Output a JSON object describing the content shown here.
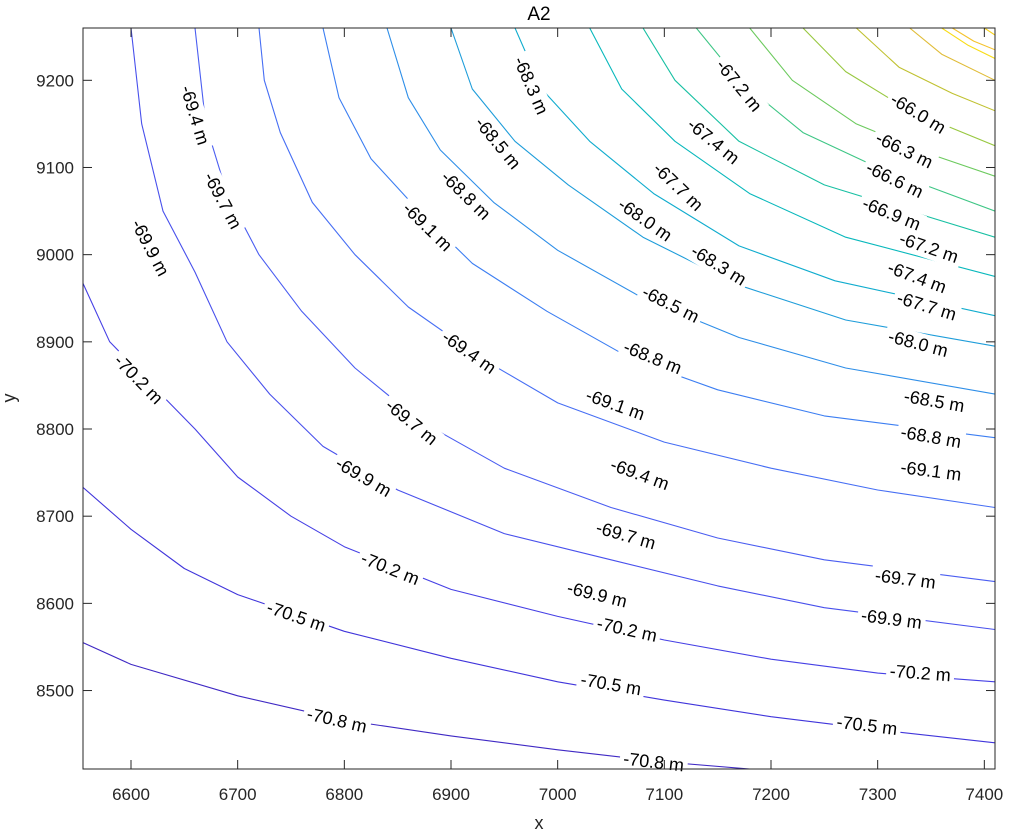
{
  "chart_data": {
    "type": "contour",
    "title": "A2",
    "xlabel": "x",
    "ylabel": "y",
    "xlim": [
      6555,
      7410
    ],
    "ylim": [
      8410,
      9260
    ],
    "xticks": [
      6600,
      6700,
      6800,
      6900,
      7000,
      7100,
      7200,
      7300,
      7400
    ],
    "yticks": [
      8500,
      8600,
      8700,
      8800,
      8900,
      9000,
      9100,
      9200
    ],
    "grid": false,
    "colormap": "parula",
    "level_range": [
      -71.0,
      -65.6
    ],
    "levels": [
      {
        "value": -70.8,
        "label": "-70.8 m",
        "color": "#3f29c4",
        "points": [
          [
            6555,
            8555
          ],
          [
            6600,
            8530
          ],
          [
            6700,
            8494
          ],
          [
            6800,
            8466
          ],
          [
            6900,
            8448
          ],
          [
            7000,
            8432
          ],
          [
            7100,
            8418
          ],
          [
            7180,
            8410
          ]
        ],
        "label_at": [
          [
            6793,
            8466
          ],
          [
            7090,
            8418
          ]
        ]
      },
      {
        "value": -70.5,
        "label": "-70.5 m",
        "color": "#4035db",
        "points": [
          [
            6555,
            8733
          ],
          [
            6600,
            8685
          ],
          [
            6650,
            8640
          ],
          [
            6700,
            8610
          ],
          [
            6800,
            8568
          ],
          [
            6900,
            8537
          ],
          [
            7000,
            8510
          ],
          [
            7100,
            8489
          ],
          [
            7200,
            8470
          ],
          [
            7300,
            8455
          ],
          [
            7410,
            8440
          ]
        ],
        "label_at": [
          [
            6755,
            8585
          ],
          [
            7050,
            8507
          ],
          [
            7290,
            8460
          ]
        ]
      },
      {
        "value": -70.2,
        "label": "-70.2 m",
        "color": "#4640e5",
        "points": [
          [
            6555,
            8967
          ],
          [
            6580,
            8900
          ],
          [
            6620,
            8850
          ],
          [
            6660,
            8800
          ],
          [
            6700,
            8745
          ],
          [
            6750,
            8700
          ],
          [
            6800,
            8665
          ],
          [
            6900,
            8616
          ],
          [
            7000,
            8585
          ],
          [
            7100,
            8558
          ],
          [
            7200,
            8536
          ],
          [
            7300,
            8520
          ],
          [
            7410,
            8510
          ]
        ],
        "label_at": [
          [
            6607,
            8857
          ],
          [
            6843,
            8640
          ],
          [
            7065,
            8570
          ],
          [
            7340,
            8520
          ]
        ]
      },
      {
        "value": -69.9,
        "label": "-69.9 m",
        "color": "#4850ec",
        "points": [
          [
            6600,
            9260
          ],
          [
            6610,
            9150
          ],
          [
            6630,
            9050
          ],
          [
            6660,
            8980
          ],
          [
            6690,
            8900
          ],
          [
            6730,
            8840
          ],
          [
            6780,
            8780
          ],
          [
            6850,
            8730
          ],
          [
            6950,
            8680
          ],
          [
            7050,
            8650
          ],
          [
            7150,
            8620
          ],
          [
            7250,
            8595
          ],
          [
            7410,
            8570
          ]
        ],
        "label_at": [
          [
            6618,
            9008
          ],
          [
            6818,
            8745
          ],
          [
            7037,
            8610
          ],
          [
            7313,
            8582
          ]
        ]
      },
      {
        "value": -69.7,
        "label": "-69.7 m",
        "color": "#4a5df1",
        "points": [
          [
            6660,
            9260
          ],
          [
            6670,
            9150
          ],
          [
            6690,
            9070
          ],
          [
            6720,
            9000
          ],
          [
            6760,
            8935
          ],
          [
            6810,
            8870
          ],
          [
            6870,
            8810
          ],
          [
            6950,
            8755
          ],
          [
            7050,
            8710
          ],
          [
            7150,
            8675
          ],
          [
            7250,
            8650
          ],
          [
            7410,
            8625
          ]
        ],
        "label_at": [
          [
            6686,
            9062
          ],
          [
            6863,
            8808
          ],
          [
            7064,
            8678
          ],
          [
            7326,
            8628
          ]
        ]
      },
      {
        "value": -69.4,
        "label": "-69.4 m",
        "color": "#466ef4",
        "points": [
          [
            6720,
            9260
          ],
          [
            6725,
            9200
          ],
          [
            6740,
            9140
          ],
          [
            6770,
            9060
          ],
          [
            6810,
            9000
          ],
          [
            6860,
            8940
          ],
          [
            6930,
            8880
          ],
          [
            7000,
            8830
          ],
          [
            7100,
            8785
          ],
          [
            7200,
            8755
          ],
          [
            7300,
            8730
          ],
          [
            7410,
            8710
          ]
        ],
        "label_at": [
          [
            6660,
            9160
          ],
          [
            6917,
            8888
          ],
          [
            7077,
            8748
          ]
        ]
      },
      {
        "value": -69.1,
        "label": "-69.1 m",
        "color": "#3c7ef2",
        "points": [
          [
            6780,
            9260
          ],
          [
            6795,
            9180
          ],
          [
            6825,
            9110
          ],
          [
            6870,
            9050
          ],
          [
            6920,
            8990
          ],
          [
            6990,
            8935
          ],
          [
            7070,
            8880
          ],
          [
            7150,
            8845
          ],
          [
            7250,
            8815
          ],
          [
            7410,
            8790
          ]
        ],
        "label_at": [
          [
            6878,
            9032
          ],
          [
            7054,
            8828
          ],
          [
            7350,
            8752
          ]
        ]
      },
      {
        "value": -68.8,
        "label": "-68.8 m",
        "color": "#2e8ee8",
        "points": [
          [
            6840,
            9260
          ],
          [
            6860,
            9180
          ],
          [
            6890,
            9120
          ],
          [
            6940,
            9060
          ],
          [
            7000,
            9005
          ],
          [
            7080,
            8950
          ],
          [
            7170,
            8905
          ],
          [
            7270,
            8870
          ],
          [
            7410,
            8840
          ]
        ],
        "label_at": [
          [
            6914,
            9068
          ],
          [
            7089,
            8882
          ],
          [
            7350,
            8791
          ]
        ]
      },
      {
        "value": -68.5,
        "label": "-68.5 m",
        "color": "#1e9dda",
        "points": [
          [
            6900,
            9260
          ],
          [
            6920,
            9190
          ],
          [
            6960,
            9130
          ],
          [
            7010,
            9080
          ],
          [
            7080,
            9020
          ],
          [
            7170,
            8965
          ],
          [
            7270,
            8925
          ],
          [
            7410,
            8895
          ]
        ],
        "label_at": [
          [
            6944,
            9128
          ],
          [
            7106,
            8943
          ],
          [
            7353,
            8832
          ]
        ]
      },
      {
        "value": -68.3,
        "label": "-68.3 m",
        "color": "#10acce",
        "points": [
          [
            6960,
            9260
          ],
          [
            6985,
            9190
          ],
          [
            7030,
            9130
          ],
          [
            7090,
            9070
          ],
          [
            7170,
            9010
          ],
          [
            7260,
            8970
          ],
          [
            7410,
            8930
          ]
        ],
        "label_at": [
          [
            6975,
            9194
          ],
          [
            7151,
            8988
          ]
        ]
      },
      {
        "value": -68.0,
        "label": "-68.0 m",
        "color": "#08b8bc",
        "points": [
          [
            7030,
            9260
          ],
          [
            7060,
            9190
          ],
          [
            7110,
            9130
          ],
          [
            7180,
            9070
          ],
          [
            7270,
            9020
          ],
          [
            7410,
            8975
          ]
        ],
        "label_at": [
          [
            7082,
            9040
          ],
          [
            7338,
            8898
          ]
        ]
      },
      {
        "value": -67.7,
        "label": "-67.7 m",
        "color": "#18c0a3",
        "points": [
          [
            7080,
            9260
          ],
          [
            7110,
            9200
          ],
          [
            7170,
            9130
          ],
          [
            7250,
            9080
          ],
          [
            7330,
            9050
          ],
          [
            7410,
            9020
          ]
        ],
        "label_at": [
          [
            7113,
            9078
          ],
          [
            7346,
            8941
          ]
        ]
      },
      {
        "value": -67.4,
        "label": "-67.4 m",
        "color": "#3ec685",
        "points": [
          [
            7130,
            9260
          ],
          [
            7170,
            9200
          ],
          [
            7230,
            9140
          ],
          [
            7300,
            9100
          ],
          [
            7410,
            9050
          ]
        ],
        "label_at": [
          [
            7146,
            9130
          ],
          [
            7337,
            8974
          ]
        ]
      },
      {
        "value": -67.2,
        "label": "-67.2 m",
        "color": "#6cca5e",
        "points": [
          [
            7180,
            9260
          ],
          [
            7220,
            9200
          ],
          [
            7280,
            9150
          ],
          [
            7350,
            9115
          ],
          [
            7410,
            9090
          ]
        ],
        "label_at": [
          [
            7170,
            9194
          ],
          [
            7348,
            9008
          ]
        ]
      },
      {
        "value": -66.9,
        "label": "-66.9 m",
        "color": "#98c840",
        "points": [
          [
            7230,
            9260
          ],
          [
            7270,
            9210
          ],
          [
            7330,
            9165
          ],
          [
            7410,
            9125
          ]
        ],
        "label_at": [
          [
            7313,
            9047
          ]
        ]
      },
      {
        "value": -66.6,
        "label": "-66.6 m",
        "color": "#c0c130",
        "points": [
          [
            7280,
            9260
          ],
          [
            7320,
            9215
          ],
          [
            7370,
            9185
          ],
          [
            7410,
            9165
          ]
        ],
        "label_at": [
          [
            7316,
            9086
          ]
        ]
      },
      {
        "value": -66.3,
        "label": "-66.3 m",
        "color": "#e0bc37",
        "points": [
          [
            7330,
            9260
          ],
          [
            7360,
            9230
          ],
          [
            7410,
            9200
          ]
        ],
        "label_at": [
          [
            7325,
            9120
          ]
        ]
      },
      {
        "value": -66.0,
        "label": "-66.0 m",
        "color": "#f5c22a",
        "points": [
          [
            7370,
            9260
          ],
          [
            7390,
            9245
          ],
          [
            7410,
            9235
          ]
        ],
        "label_at": [
          [
            7338,
            9162
          ]
        ]
      },
      {
        "value": -65.8,
        "label": "",
        "color": "#f9d21a",
        "points": [
          [
            7400,
            9260
          ],
          [
            7410,
            9252
          ]
        ],
        "label_at": []
      },
      {
        "value": -65.9,
        "label": "",
        "color": "#f8dc14",
        "points": [
          [
            7360,
            9260
          ],
          [
            7385,
            9240
          ],
          [
            7410,
            9225
          ]
        ],
        "label_at": []
      }
    ]
  }
}
